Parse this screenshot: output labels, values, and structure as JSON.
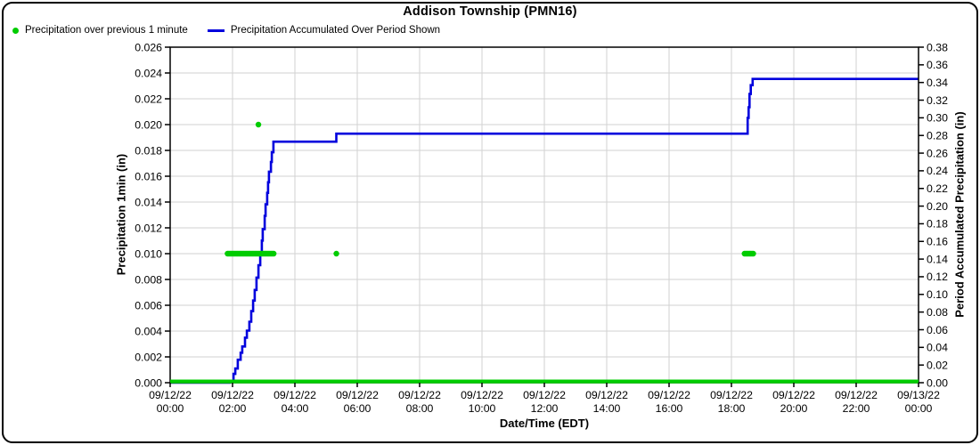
{
  "title": "Addison Township (PMN16)",
  "legend": [
    {
      "label": "Precipitation over previous 1 minute",
      "marker": "dot",
      "color": "#00cc00"
    },
    {
      "label": "Precipitation Accumulated Over Period Shown",
      "marker": "line",
      "color": "#0000dd"
    }
  ],
  "axes": {
    "left_label": "Precipitation 1min (in)",
    "right_label": "Period Accumulated Precipitation (in)",
    "x_label": "Date/Time (EDT)"
  },
  "chart_data": {
    "type": "line",
    "title": "Addison Township (PMN16)",
    "xlabel": "Date/Time (EDT)",
    "ylabel_left": "Precipitation 1min (in)",
    "ylabel_right": "Period Accumulated Precipitation (in)",
    "xlim_hours": [
      0,
      24
    ],
    "ylim_left": [
      0,
      0.026
    ],
    "ylim_right": [
      0,
      0.38
    ],
    "grid": true,
    "grid_color": "#d2d2d2",
    "legend_position": "top-left",
    "x_ticks": [
      {
        "date": "09/12/22",
        "time": "00:00"
      },
      {
        "date": "09/12/22",
        "time": "02:00"
      },
      {
        "date": "09/12/22",
        "time": "04:00"
      },
      {
        "date": "09/12/22",
        "time": "06:00"
      },
      {
        "date": "09/12/22",
        "time": "08:00"
      },
      {
        "date": "09/12/22",
        "time": "10:00"
      },
      {
        "date": "09/12/22",
        "time": "12:00"
      },
      {
        "date": "09/12/22",
        "time": "14:00"
      },
      {
        "date": "09/12/22",
        "time": "16:00"
      },
      {
        "date": "09/12/22",
        "time": "18:00"
      },
      {
        "date": "09/12/22",
        "time": "20:00"
      },
      {
        "date": "09/12/22",
        "time": "22:00"
      },
      {
        "date": "09/13/22",
        "time": "00:00"
      }
    ],
    "y_ticks_left": [
      "0.000",
      "0.002",
      "0.004",
      "0.006",
      "0.008",
      "0.010",
      "0.012",
      "0.014",
      "0.016",
      "0.018",
      "0.020",
      "0.022",
      "0.024",
      "0.026"
    ],
    "y_ticks_right": [
      "0.00",
      "0.02",
      "0.04",
      "0.06",
      "0.08",
      "0.10",
      "0.12",
      "0.14",
      "0.16",
      "0.18",
      "0.20",
      "0.22",
      "0.24",
      "0.26",
      "0.28",
      "0.30",
      "0.32",
      "0.34",
      "0.36",
      "0.38"
    ],
    "series": [
      {
        "name": "Precipitation over previous 1 minute",
        "type": "scatter",
        "axis": "left",
        "color": "#00cc00",
        "baseline": {
          "from_hour": 0,
          "to_hour": 24,
          "value": 0.0
        },
        "clusters": [
          {
            "from_hour": 1.84,
            "to_hour": 3.34,
            "value": 0.01
          },
          {
            "from_hour": 18.42,
            "to_hour": 18.72,
            "value": 0.01
          }
        ],
        "points": [
          {
            "hour": 2.83,
            "value": 0.02
          },
          {
            "hour": 5.33,
            "value": 0.01
          }
        ]
      },
      {
        "name": "Precipitation Accumulated Over Period Shown",
        "type": "step-line",
        "axis": "right",
        "color": "#0000dd",
        "points": [
          [
            0,
            0
          ],
          [
            1.83,
            0
          ],
          [
            1.91,
            0.002
          ],
          [
            2.03,
            0.01
          ],
          [
            2.09,
            0.016
          ],
          [
            2.17,
            0.026
          ],
          [
            2.26,
            0.034
          ],
          [
            2.31,
            0.041
          ],
          [
            2.4,
            0.051
          ],
          [
            2.46,
            0.059
          ],
          [
            2.54,
            0.069
          ],
          [
            2.6,
            0.081
          ],
          [
            2.66,
            0.093
          ],
          [
            2.71,
            0.105
          ],
          [
            2.77,
            0.119
          ],
          [
            2.83,
            0.133
          ],
          [
            2.89,
            0.147
          ],
          [
            2.94,
            0.161
          ],
          [
            2.97,
            0.174
          ],
          [
            3.03,
            0.189
          ],
          [
            3.06,
            0.202
          ],
          [
            3.11,
            0.215
          ],
          [
            3.14,
            0.227
          ],
          [
            3.17,
            0.239
          ],
          [
            3.23,
            0.25
          ],
          [
            3.26,
            0.261
          ],
          [
            3.31,
            0.273
          ],
          [
            5.29,
            0.273
          ],
          [
            5.33,
            0.282
          ],
          [
            18.49,
            0.282
          ],
          [
            18.52,
            0.3
          ],
          [
            18.55,
            0.312
          ],
          [
            18.58,
            0.327
          ],
          [
            18.62,
            0.337
          ],
          [
            18.68,
            0.344
          ],
          [
            24,
            0.344
          ]
        ]
      }
    ]
  }
}
